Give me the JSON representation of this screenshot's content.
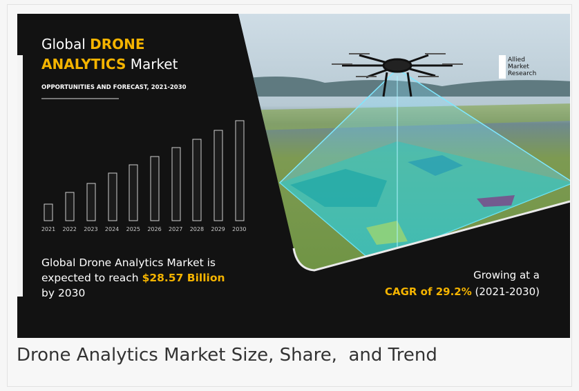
{
  "infographic": {
    "title_parts": [
      "Global",
      "DRONE",
      "ANALYTICS",
      "Market"
    ],
    "subtitle": "OPPORTUNITIES AND FORECAST, 2021-2030",
    "years": [
      "2021",
      "2022",
      "2023",
      "2024",
      "2025",
      "2026",
      "2027",
      "2028",
      "2029",
      "2030"
    ],
    "statement": [
      "Global Drone Analytics Market is",
      "expected to reach",
      "$28.57 Billion",
      "by 2030"
    ],
    "cagr": [
      "Growing at a",
      "CAGR of 29.2%",
      "(2021-2030)"
    ],
    "logo": [
      "Allied",
      "Market",
      "Research"
    ]
  },
  "caption": "Drone Analytics Market Size, Share,  and Trend"
}
